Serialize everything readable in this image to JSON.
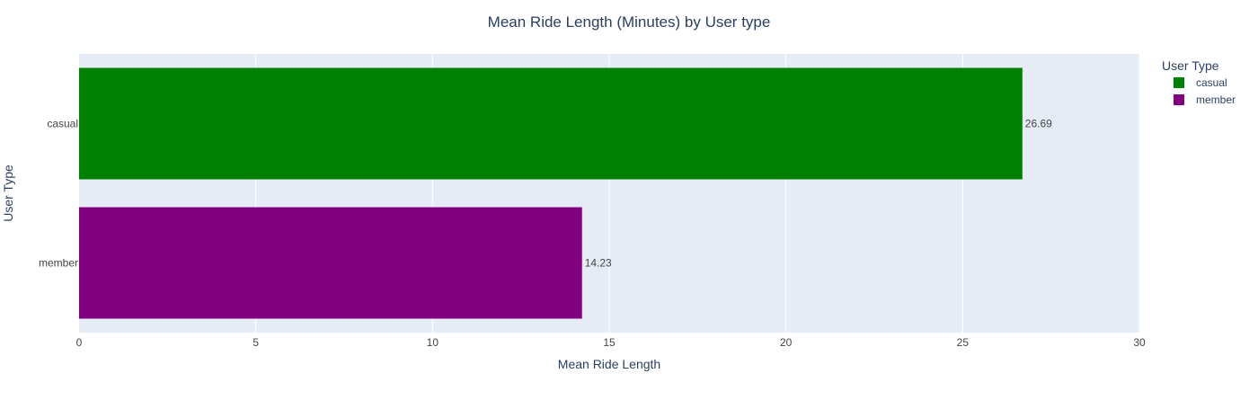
{
  "chart_data": {
    "type": "bar",
    "orientation": "horizontal",
    "title": "Mean Ride Length (Minutes) by User type",
    "xlabel": "Mean Ride Length",
    "ylabel": "User Type",
    "categories": [
      "casual",
      "member"
    ],
    "values": [
      26.69,
      14.23
    ],
    "value_labels": [
      "26.69",
      "14.23"
    ],
    "bar_colors": [
      "#008000",
      "#800080"
    ],
    "xlim": [
      0,
      30
    ],
    "x_ticks": [
      0,
      5,
      10,
      15,
      20,
      25,
      30
    ],
    "x_tick_labels": [
      "0",
      "5",
      "10",
      "15",
      "20",
      "25",
      "30"
    ],
    "grid": true,
    "legend": {
      "title": "User Type",
      "placement": "top-right",
      "entries": [
        {
          "label": "casual",
          "color": "#008000"
        },
        {
          "label": "member",
          "color": "#800080"
        }
      ]
    }
  },
  "colors": {
    "plot_background": "#e5ecf6",
    "grid": "#ffffff",
    "text": "#2a3f5f",
    "tick_text": "#444444"
  }
}
